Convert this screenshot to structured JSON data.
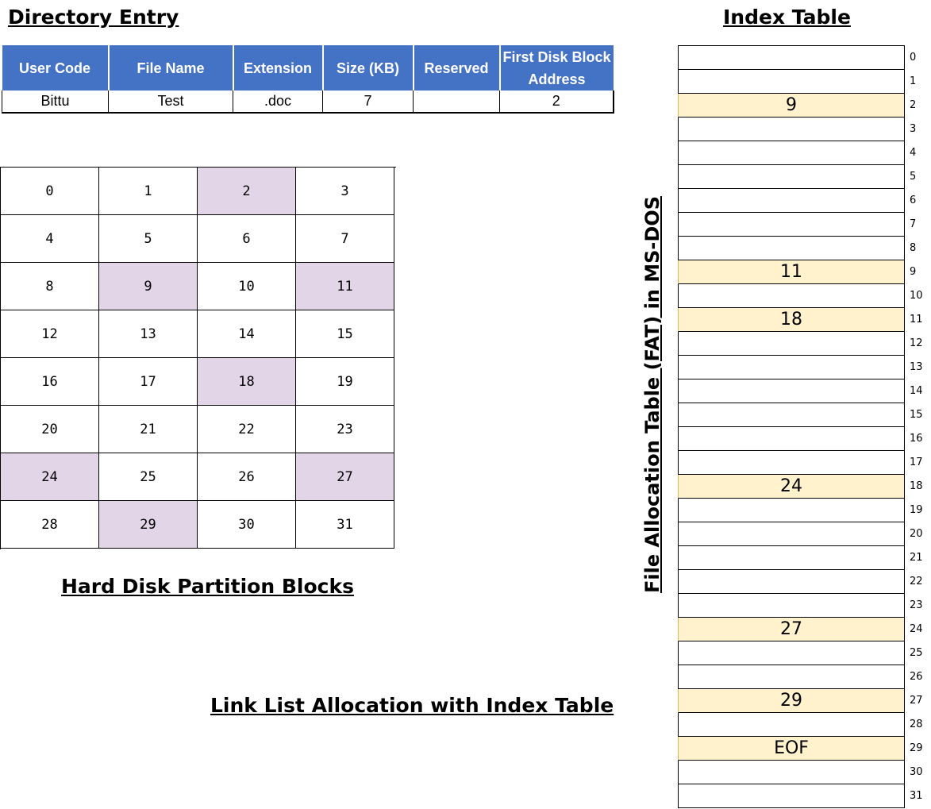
{
  "titles": {
    "directory_entry": "Directory Entry",
    "index_table": "Index Table",
    "partition_blocks": "Hard Disk Partition Blocks",
    "allocation_method": "Link List Allocation with Index Table",
    "fat_label": "File Allocation Table (FAT) in MS-DOS"
  },
  "directory": {
    "headers": [
      "User Code",
      "File Name",
      "Extension",
      "Size (KB)",
      "Reserved",
      "First Disk Block Address"
    ],
    "row": [
      "Bittu",
      "Test",
      ".doc",
      "7",
      "",
      "2"
    ]
  },
  "disk": {
    "blocks": [
      "0",
      "1",
      "2",
      "3",
      "4",
      "5",
      "6",
      "7",
      "8",
      "9",
      "10",
      "11",
      "12",
      "13",
      "14",
      "15",
      "16",
      "17",
      "18",
      "19",
      "20",
      "21",
      "22",
      "23",
      "24",
      "25",
      "26",
      "27",
      "28",
      "29",
      "30",
      "31"
    ],
    "used_blocks": [
      2,
      9,
      11,
      18,
      24,
      27,
      29
    ]
  },
  "fat": {
    "indices": [
      "0",
      "1",
      "2",
      "3",
      "4",
      "5",
      "6",
      "7",
      "8",
      "9",
      "10",
      "11",
      "12",
      "13",
      "14",
      "15",
      "16",
      "17",
      "18",
      "19",
      "20",
      "21",
      "22",
      "23",
      "24",
      "25",
      "26",
      "27",
      "28",
      "29",
      "30",
      "31"
    ],
    "entries": [
      "",
      "",
      "9",
      "",
      "",
      "",
      "",
      "",
      "",
      "11",
      "",
      "18",
      "",
      "",
      "",
      "",
      "",
      "",
      "24",
      "",
      "",
      "",
      "",
      "",
      "27",
      "",
      "",
      "29",
      "",
      "EOF",
      "",
      ""
    ]
  },
  "colors": {
    "header_bg": "#4472c4",
    "used_block": "#e1d5e7",
    "fat_used": "#fff2cc"
  }
}
